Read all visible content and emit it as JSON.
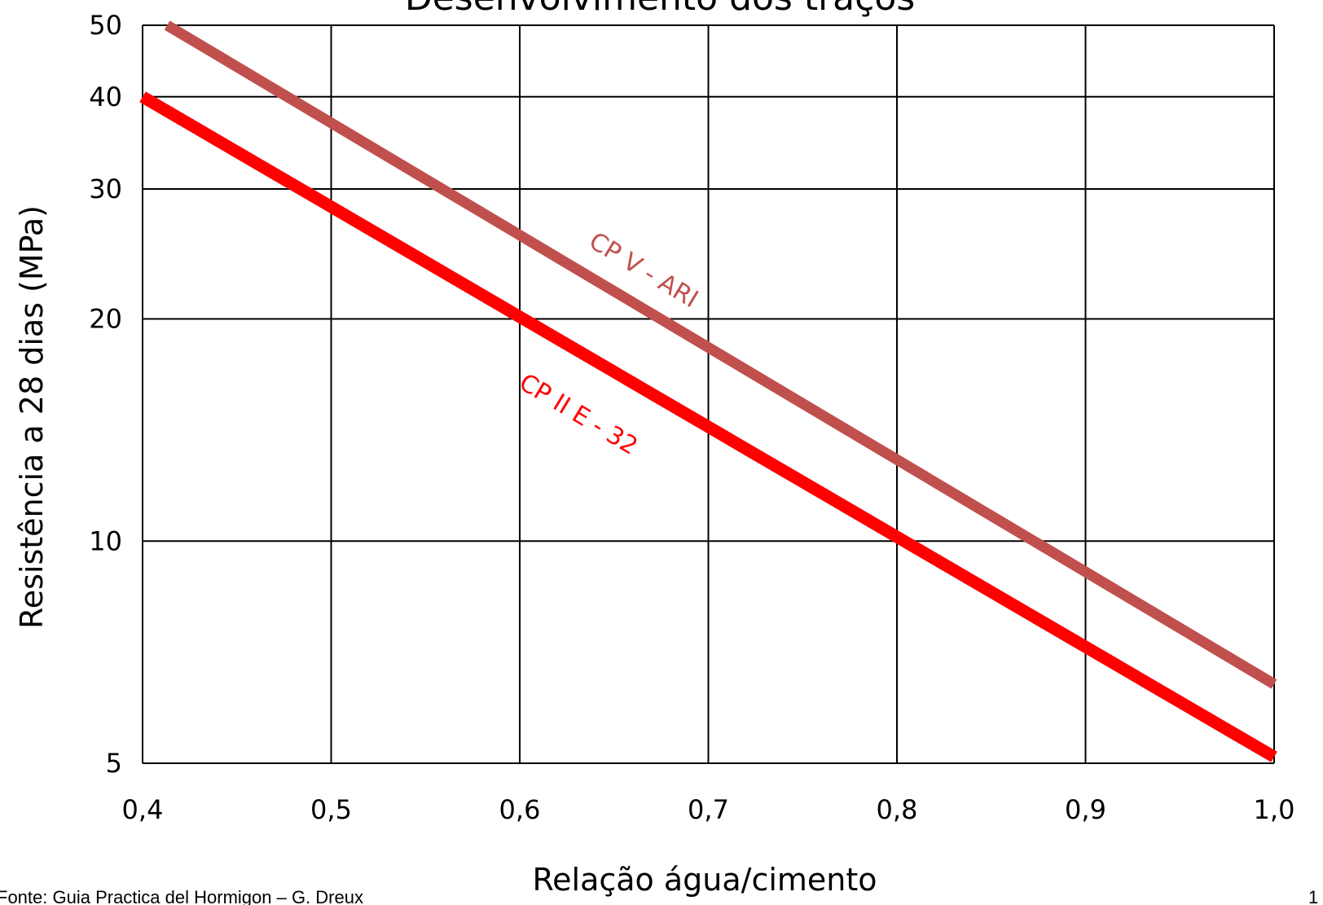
{
  "slide": {
    "source_note": "Fonte: Guia Practica del Hormigon – G. Dreux",
    "page_number": "1"
  },
  "chart_data": {
    "type": "line",
    "title": "Desenvolvimento dos traços",
    "xlabel": "Relação água/cimento",
    "ylabel": "Resistência a 28 dias (MPa)",
    "xlim": [
      0.4,
      1.0
    ],
    "ylim": [
      5,
      50
    ],
    "y_scale": "log",
    "grid": true,
    "legend": "none",
    "x_ticks": [
      0.4,
      0.5,
      0.6,
      0.7,
      0.8,
      0.9,
      1.0
    ],
    "x_tick_labels": [
      "0,4",
      "0,5",
      "0,6",
      "0,7",
      "0,8",
      "0,9",
      "1,0"
    ],
    "y_ticks": [
      5,
      10,
      20,
      30,
      40,
      50
    ],
    "y_tick_labels": [
      "5",
      "10",
      "20",
      "30",
      "40",
      "50"
    ],
    "series": [
      {
        "name": "CP V - ARI",
        "color": "#c0504d",
        "x": [
          0.413,
          1.0
        ],
        "y": [
          50,
          6.4
        ]
      },
      {
        "name": "CP II E - 32",
        "color": "#ff0000",
        "x": [
          0.4,
          1.0
        ],
        "y": [
          40,
          5.1
        ]
      }
    ]
  }
}
